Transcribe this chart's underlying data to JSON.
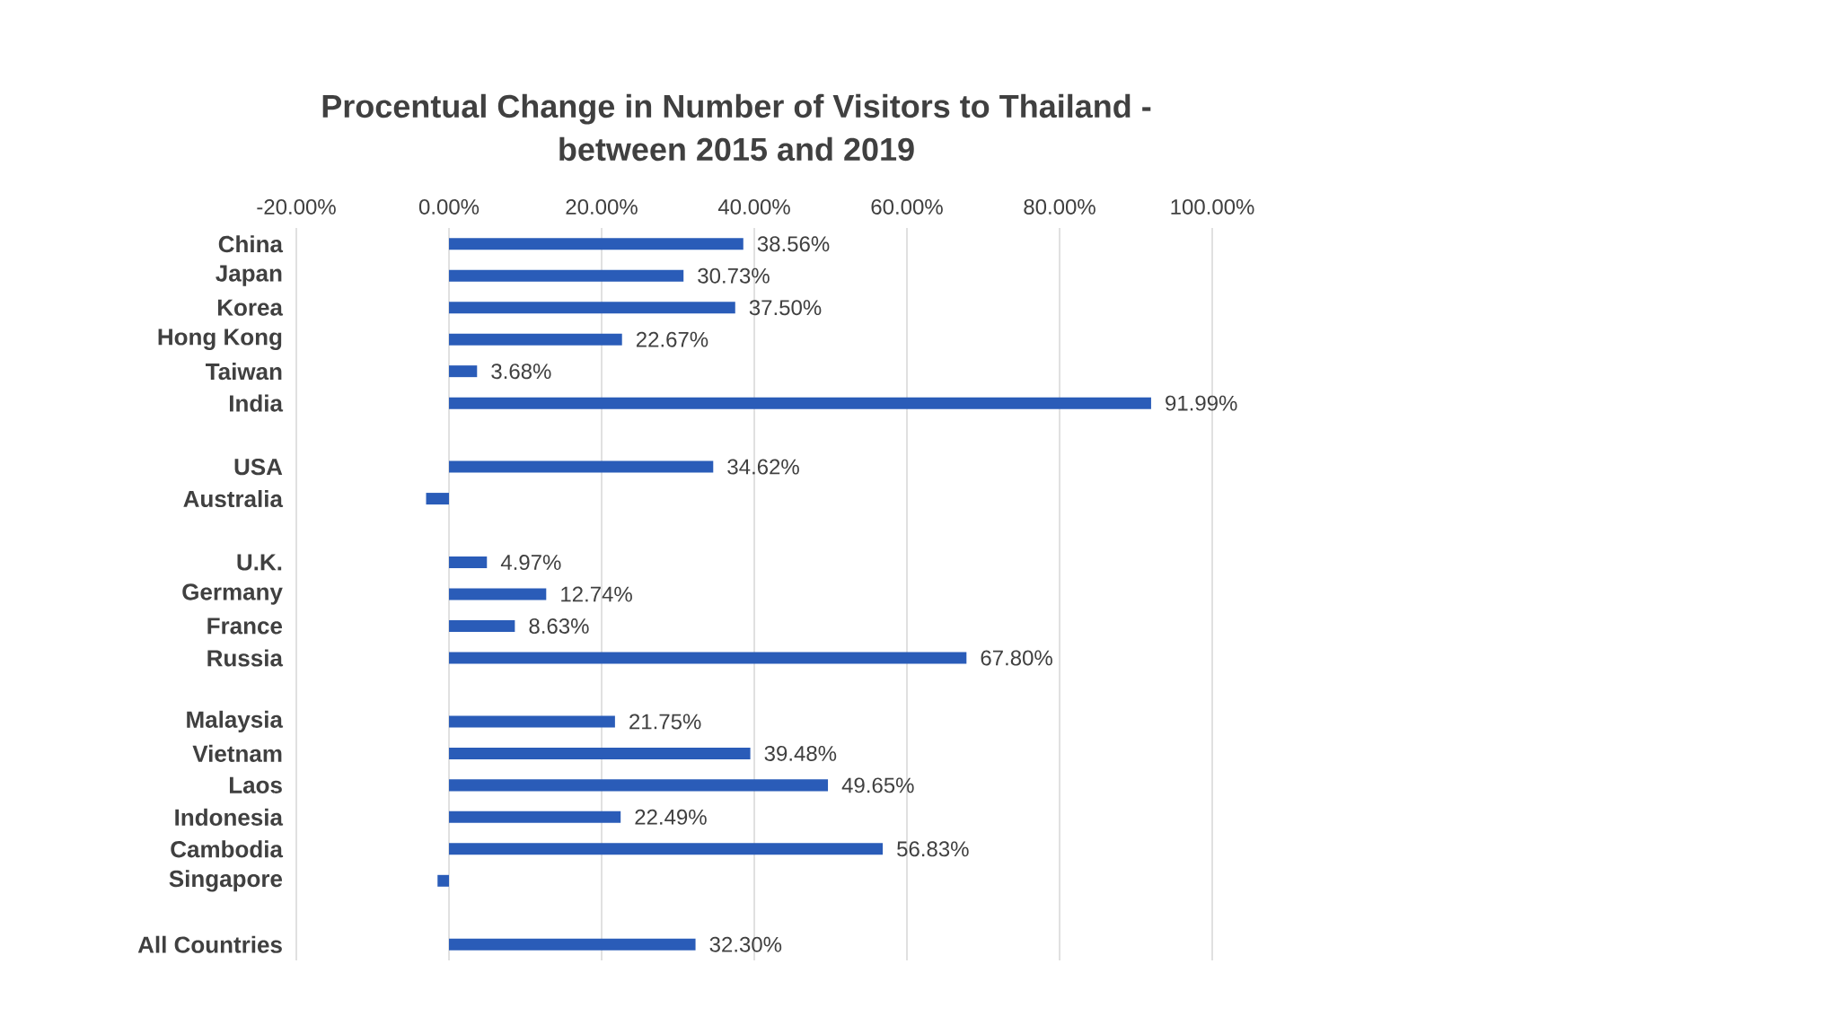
{
  "chart_data": {
    "type": "bar",
    "orientation": "horizontal",
    "title": "Procentual Change in Number of Visitors to Thailand - between 2015 and 2019",
    "categories": [
      "China",
      "Japan",
      "Korea",
      "Hong Kong",
      "Taiwan",
      "India",
      null,
      "USA",
      "Australia",
      null,
      "U.K.",
      "Germany",
      "France",
      "Russia",
      null,
      "Malaysia",
      "Vietnam",
      "Laos",
      "Indonesia",
      "Cambodia",
      "Singapore",
      null,
      "All Countries"
    ],
    "values": [
      38.56,
      30.73,
      37.5,
      22.67,
      3.68,
      91.99,
      null,
      34.62,
      -3,
      null,
      4.97,
      12.74,
      8.63,
      67.8,
      null,
      21.75,
      39.48,
      49.65,
      22.49,
      56.83,
      -1.5,
      null,
      32.3
    ],
    "value_labels": [
      "38.56%",
      "30.73%",
      "37.50%",
      "22.67%",
      "3.68%",
      "91.99%",
      null,
      "34.62%",
      null,
      null,
      "4.97%",
      "12.74%",
      "8.63%",
      "67.80%",
      null,
      "21.75%",
      "39.48%",
      "49.65%",
      "22.49%",
      "56.83%",
      null,
      null,
      "32.30%"
    ],
    "color": "#2a5cb8",
    "xlim": [
      -20,
      100
    ],
    "xticks": [
      {
        "value": -20,
        "label": "-20.00%"
      },
      {
        "value": 0,
        "label": "0.00%"
      },
      {
        "value": 20,
        "label": "20.00%"
      },
      {
        "value": 40,
        "label": "40.00%"
      },
      {
        "value": 60,
        "label": "60.00%"
      },
      {
        "value": 80,
        "label": "80.00%"
      },
      {
        "value": 100,
        "label": "100.00%"
      }
    ],
    "grid": "x"
  }
}
